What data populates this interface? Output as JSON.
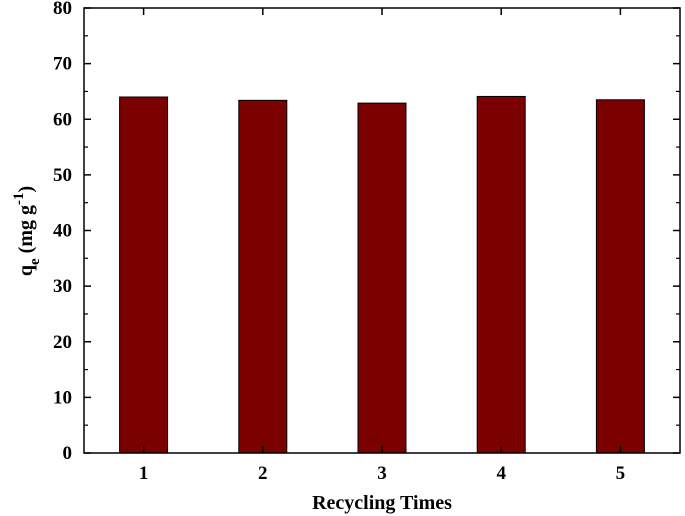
{
  "chart_data": {
    "type": "bar",
    "categories": [
      "1",
      "2",
      "3",
      "4",
      "5"
    ],
    "values": [
      64.0,
      63.4,
      62.9,
      64.1,
      63.5
    ],
    "title": "",
    "xlabel": "Recycling Times",
    "ylabel": {
      "main": "q",
      "subscript": "e",
      "units_open": " (mg g",
      "superscript": "-1",
      "units_close": ")"
    },
    "ylim": [
      0,
      80
    ],
    "yticks": [
      "0",
      "10",
      "20",
      "30",
      "40",
      "50",
      "60",
      "70",
      "80"
    ],
    "bar_color": "#7b0000",
    "edge_color": "#000000",
    "grid": false,
    "legend": "none"
  }
}
